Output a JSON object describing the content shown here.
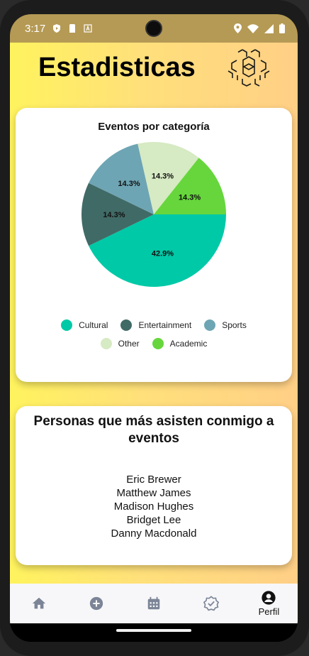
{
  "status_bar": {
    "time": "3:17",
    "left_icons": [
      "shield-play-icon",
      "sim-card-icon",
      "font-a-icon"
    ],
    "right_icons": [
      "location-icon",
      "wifi-icon",
      "signal-icon",
      "battery-icon"
    ]
  },
  "page": {
    "title": "Estadisticas",
    "logo_icon": "hexagon-honeycomb-icon"
  },
  "chart_card": {
    "chart_data": {
      "type": "pie",
      "title": "Eventos por categoría",
      "labels": [
        "Cultural",
        "Entertainment",
        "Sports",
        "Other",
        "Academic"
      ],
      "values": [
        42.9,
        14.3,
        14.3,
        14.3,
        14.3
      ],
      "value_labels": [
        "42.9%",
        "14.3%",
        "14.3%",
        "14.3%",
        "14.3%"
      ],
      "colors": [
        "#00c9a7",
        "#406a66",
        "#6ea5b4",
        "#d6eac3",
        "#66d63c"
      ],
      "legend_position": "bottom"
    }
  },
  "people_card": {
    "title": "Personas que más asisten conmigo a eventos",
    "people": [
      "Eric Brewer",
      "Matthew James",
      "Madison Hughes",
      "Bridget Lee",
      "Danny Macdonald"
    ]
  },
  "nav": {
    "items": [
      {
        "icon": "home-icon",
        "label": ""
      },
      {
        "icon": "add-circle-icon",
        "label": ""
      },
      {
        "icon": "calendar-icon",
        "label": ""
      },
      {
        "icon": "verified-badge-icon",
        "label": ""
      },
      {
        "icon": "profile-icon",
        "label": "Perfil"
      }
    ],
    "active_index": 4
  }
}
